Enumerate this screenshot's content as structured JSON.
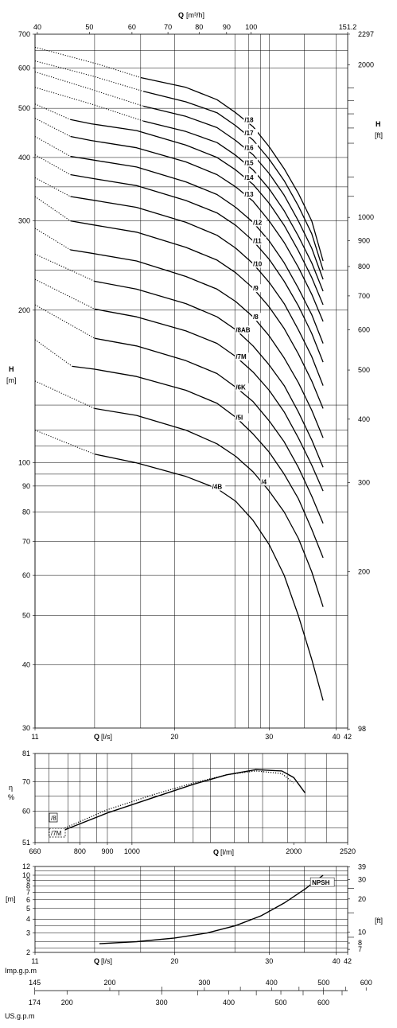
{
  "chart_data": [
    {
      "type": "line",
      "title": "",
      "x_scale": "log",
      "y_scale": "log",
      "xlabel": "Q [l/s]",
      "xlim": [
        11,
        42
      ],
      "ylabel": "H [m]",
      "ylim": [
        30,
        700
      ],
      "grid": true,
      "x_ticks": [
        "11",
        "20",
        "30",
        "40",
        "42"
      ],
      "y_ticks": [
        "30",
        "40",
        "50",
        "60",
        "70",
        "80",
        "90",
        "100",
        "200",
        "300",
        "400",
        "500",
        "600",
        "700"
      ],
      "top_axis": {
        "label_bold": "Q",
        "label_unit": " [m³/h]",
        "ticks": [
          "40",
          "50",
          "60",
          "70",
          "80",
          "90",
          "100",
          "151.2"
        ]
      },
      "right_axis": {
        "label_bold": "H",
        "label_unit": "[ft]",
        "ticks": [
          "98",
          "200",
          "300",
          "400",
          "500",
          "600",
          "700",
          "800",
          "900",
          "1000",
          "2000",
          "2297"
        ]
      },
      "series": [
        {
          "name": "/18",
          "x": [
            11,
            14.5,
            17.3,
            21,
            24,
            26,
            28,
            30,
            32,
            34,
            36,
            37.8
          ],
          "y": [
            660,
            610,
            575,
            550,
            520,
            490,
            460,
            420,
            380,
            340,
            300,
            250
          ],
          "dotted_to": 17.3
        },
        {
          "name": "/17",
          "x": [
            11,
            14,
            17.5,
            21,
            24,
            26,
            28,
            30,
            32,
            34,
            36,
            37.8
          ],
          "y": [
            620,
            580,
            540,
            515,
            490,
            462,
            433,
            397,
            360,
            321,
            283,
            240
          ],
          "dotted_to": 17.5
        },
        {
          "name": "/16",
          "x": [
            11,
            14,
            17.5,
            21,
            24,
            26,
            28,
            30,
            32,
            34,
            36,
            37.8
          ],
          "y": [
            590,
            545,
            505,
            482,
            458,
            432,
            405,
            372,
            337,
            300,
            265,
            230
          ],
          "dotted_to": 17.5
        },
        {
          "name": "/15",
          "x": [
            11,
            14,
            17.5,
            21,
            24,
            26,
            28,
            30,
            32,
            34,
            36,
            37.8
          ],
          "y": [
            550,
            510,
            472,
            450,
            428,
            404,
            378,
            347,
            314,
            280,
            248,
            218
          ],
          "dotted_to": 17.5
        },
        {
          "name": "/14",
          "x": [
            11,
            12.8,
            14,
            17,
            21,
            24,
            26,
            28,
            30,
            32,
            34,
            36,
            37.8
          ],
          "y": [
            510,
            475,
            466,
            452,
            423,
            400,
            378,
            354,
            325,
            294,
            262,
            232,
            205
          ],
          "dotted_to": 12.8
        },
        {
          "name": "/13",
          "x": [
            11,
            12.8,
            14,
            17,
            21,
            24,
            26,
            28,
            30,
            32,
            34,
            36,
            37.8
          ],
          "y": [
            478,
            440,
            432,
            418,
            392,
            370,
            350,
            328,
            300,
            272,
            243,
            215,
            190
          ],
          "dotted_to": 12.8
        },
        {
          "name": "/12",
          "x": [
            11,
            12.8,
            14,
            17,
            21,
            24,
            26,
            28,
            30,
            32,
            34,
            36,
            37.8
          ],
          "y": [
            440,
            402,
            396,
            383,
            358,
            338,
            319,
            298,
            274,
            248,
            221,
            196,
            172
          ],
          "dotted_to": 12.8
        },
        {
          "name": "/11",
          "x": [
            11,
            12.8,
            14,
            17,
            21,
            24,
            26,
            28,
            30,
            32,
            34,
            36,
            37.8
          ],
          "y": [
            405,
            370,
            364,
            352,
            329,
            311,
            294,
            274,
            252,
            228,
            204,
            180,
            158
          ],
          "dotted_to": 12.8
        },
        {
          "name": "/10",
          "x": [
            11,
            12.8,
            14,
            17,
            21,
            24,
            26,
            28,
            30,
            32,
            34,
            36,
            37.8
          ],
          "y": [
            365,
            335,
            330,
            319,
            298,
            281,
            265,
            247,
            227,
            206,
            183,
            162,
            142
          ],
          "dotted_to": 12.8
        },
        {
          "name": "/9",
          "x": [
            11,
            12.8,
            14,
            17,
            21,
            24,
            26,
            28,
            30,
            32,
            34,
            36,
            37.8
          ],
          "y": [
            335,
            300,
            295,
            285,
            266,
            251,
            237,
            221,
            203,
            184,
            164,
            145,
            128
          ],
          "dotted_to": 12.8
        },
        {
          "name": "/8",
          "x": [
            11,
            12.8,
            14,
            17,
            21,
            24,
            26,
            28,
            30,
            32,
            34,
            36,
            37.8
          ],
          "y": [
            290,
            263,
            259,
            250,
            233,
            220,
            208,
            194,
            178,
            161,
            144,
            127,
            112
          ],
          "dotted_to": 12.8
        },
        {
          "name": "/8AB",
          "x": [
            11,
            14.2,
            17,
            21,
            24,
            26,
            28,
            30,
            32,
            34,
            36,
            37.8
          ],
          "y": [
            258,
            228,
            220,
            206,
            194,
            183,
            170,
            156,
            142,
            126,
            111,
            98
          ],
          "dotted_to": 14.2
        },
        {
          "name": "/7M",
          "x": [
            11,
            14.2,
            17,
            21,
            24,
            26,
            28,
            30,
            32,
            34,
            36,
            37.8
          ],
          "y": [
            230,
            201,
            194,
            182,
            172,
            162,
            151,
            139,
            126,
            112,
            99,
            88
          ],
          "dotted_to": 14.2
        },
        {
          "name": "/6K",
          "x": [
            11,
            14.2,
            17,
            21,
            24,
            26,
            28,
            30,
            32,
            34,
            36,
            37.8
          ],
          "y": [
            205,
            176,
            170,
            159,
            150,
            141,
            132,
            121,
            110,
            98,
            86,
            76
          ],
          "dotted_to": 14.2
        },
        {
          "name": "/5I",
          "x": [
            11,
            12.9,
            14.2,
            17,
            21,
            24,
            26,
            28,
            30,
            32,
            34,
            36,
            37.8
          ],
          "y": [
            175,
            155,
            153,
            148,
            139,
            131,
            123,
            114,
            105,
            95,
            85,
            74,
            65
          ],
          "dotted_to": 12.9
        },
        {
          "name": "/4",
          "x": [
            11,
            14.2,
            17,
            21,
            24,
            26,
            28,
            30,
            32,
            34,
            36,
            37.8
          ],
          "y": [
            145,
            128,
            124,
            116,
            109,
            103,
            96,
            88,
            80,
            71,
            61,
            52
          ],
          "dotted_to": 14.2
        },
        {
          "name": "/4B",
          "x": [
            11,
            14.2,
            17,
            21,
            24,
            26,
            28,
            30,
            32,
            34,
            36,
            37.8
          ],
          "y": [
            116,
            104,
            100,
            94,
            89,
            84,
            77,
            69,
            60,
            50,
            41,
            34
          ],
          "dotted_to": 14.2
        }
      ]
    },
    {
      "type": "line",
      "title": "",
      "x_scale": "log",
      "y_scale": "log",
      "xlabel": "Q [l/m]",
      "xlim": [
        660,
        2520
      ],
      "ylabel": "η %",
      "ylim": [
        51,
        81
      ],
      "grid": true,
      "x_ticks": [
        "660",
        "800",
        "900",
        "1000",
        "2000",
        "2520"
      ],
      "y_ticks": [
        "51",
        "60",
        "70",
        "81"
      ],
      "series": [
        {
          "name": "/8",
          "style": "solid",
          "x": [
            750,
            900,
            1100,
            1300,
            1500,
            1700,
            1900,
            2000,
            2100
          ],
          "y": [
            54.5,
            59.5,
            64.5,
            69,
            72.5,
            74.5,
            74,
            71.5,
            66
          ]
        },
        {
          "name": "/7M",
          "style": "dotted",
          "x": [
            750,
            900,
            1100,
            1300,
            1500,
            1700,
            1900,
            2000
          ],
          "y": [
            55,
            60.5,
            65.5,
            69.5,
            72.5,
            74,
            73,
            69.5
          ]
        }
      ]
    },
    {
      "type": "line",
      "title": "",
      "x_scale": "log",
      "y_scale": "log",
      "xlabel": "Q [l/s]",
      "xlim": [
        11,
        42
      ],
      "ylabel": "[m]",
      "ylim": [
        2,
        12
      ],
      "grid": true,
      "x_ticks": [
        "11",
        "20",
        "30",
        "40",
        "42"
      ],
      "y_ticks": [
        "2",
        "3",
        "4",
        "5",
        "6",
        "7",
        "8",
        "9",
        "10",
        "12"
      ],
      "right_axis": {
        "label": "[ft]",
        "ticks": [
          "7",
          "8",
          "10",
          "20",
          "30",
          "39"
        ]
      },
      "series": [
        {
          "name": "NPSH",
          "x": [
            14.5,
            17,
            20,
            23,
            26,
            29,
            32,
            35,
            37.8
          ],
          "y": [
            2.4,
            2.5,
            2.7,
            3,
            3.5,
            4.3,
            5.6,
            7.5,
            10
          ]
        }
      ]
    },
    {
      "type": "table",
      "scales": [
        {
          "label": "Imp.g.p.m",
          "ticks": [
            "145",
            "200",
            "300",
            "400",
            "500",
            "600"
          ]
        },
        {
          "label": "US.g.p.m",
          "ticks": [
            "174",
            "200",
            "300",
            "400",
            "500",
            "600"
          ]
        }
      ]
    }
  ]
}
